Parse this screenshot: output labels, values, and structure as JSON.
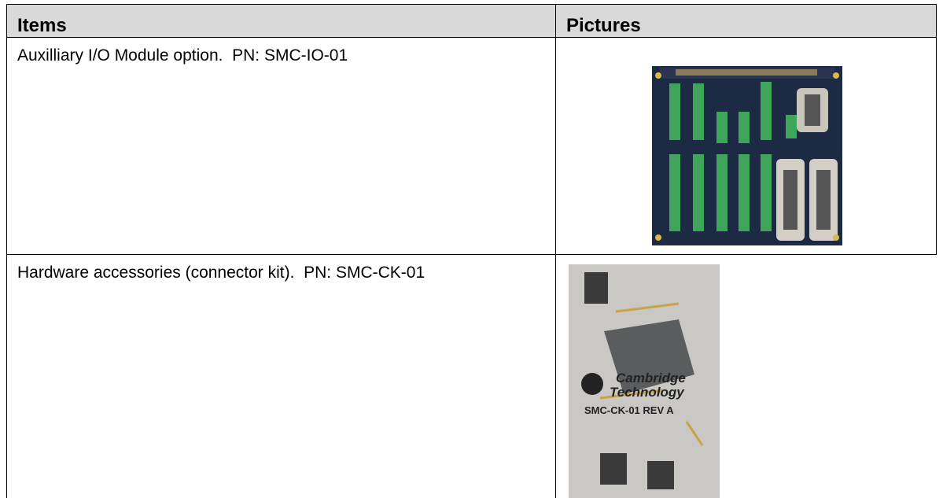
{
  "table": {
    "headers": [
      "Items",
      "Pictures"
    ],
    "rows": [
      {
        "item": "Auxilliary I/O Module option.  PN: SMC-IO-01"
      },
      {
        "item": "Hardware accessories (connector kit).  PN: SMC-CK-01",
        "picture_text": [
          "Cambridge",
          "Technology",
          "SMC-CK-01 REV A"
        ]
      }
    ]
  }
}
